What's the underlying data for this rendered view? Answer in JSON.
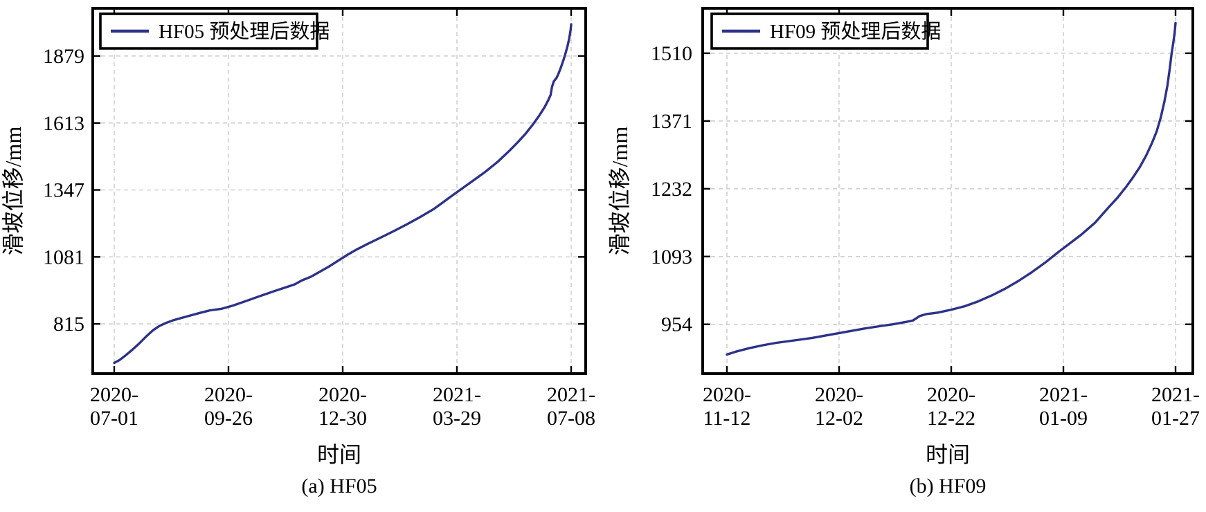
{
  "figure": {
    "background": "#ffffff",
    "line_color": "#2d3289",
    "grid_color": "#c9c9c9",
    "axis_color": "#000000",
    "text_color": "#000000"
  },
  "chart_data": [
    {
      "type": "line",
      "panel": "left",
      "legend": "HF05 预处理后数据",
      "xlabel": "时间",
      "ylabel": "滑坡位移/mm",
      "caption": "(a) HF05",
      "grid": "on",
      "legend_position": "top-left",
      "yticks": [
        815,
        1081,
        1347,
        1613,
        1879
      ],
      "ylim": [
        612,
        2074
      ],
      "xtick_labels": [
        [
          "2020-",
          "07-01"
        ],
        [
          "2020-",
          "09-26"
        ],
        [
          "2020-",
          "12-30"
        ],
        [
          "2021-",
          "03-29"
        ],
        [
          "2021-",
          "07-08"
        ]
      ],
      "series": [
        {
          "name": "HF05 预处理后数据",
          "x_unit": "fraction of x-axis from 2020-07-01 to 2021-07-08",
          "y_unit": "mm",
          "points": [
            [
              0,
              660
            ],
            [
              0.012,
              672
            ],
            [
              0.025,
              690
            ],
            [
              0.04,
              713
            ],
            [
              0.055,
              738
            ],
            [
              0.07,
              765
            ],
            [
              0.085,
              790
            ],
            [
              0.1,
              808
            ],
            [
              0.115,
              820
            ],
            [
              0.13,
              830
            ],
            [
              0.15,
              840
            ],
            [
              0.17,
              850
            ],
            [
              0.19,
              860
            ],
            [
              0.21,
              869
            ],
            [
              0.235,
              875
            ],
            [
              0.26,
              888
            ],
            [
              0.29,
              907
            ],
            [
              0.32,
              926
            ],
            [
              0.35,
              945
            ],
            [
              0.375,
              960
            ],
            [
              0.395,
              972
            ],
            [
              0.41,
              987
            ],
            [
              0.43,
              1002
            ],
            [
              0.45,
              1022
            ],
            [
              0.47,
              1043
            ],
            [
              0.49,
              1066
            ],
            [
              0.51,
              1089
            ],
            [
              0.53,
              1110
            ],
            [
              0.555,
              1133
            ],
            [
              0.58,
              1155
            ],
            [
              0.61,
              1182
            ],
            [
              0.64,
              1210
            ],
            [
              0.67,
              1240
            ],
            [
              0.7,
              1272
            ],
            [
              0.725,
              1305
            ],
            [
              0.75,
              1338
            ],
            [
              0.78,
              1377
            ],
            [
              0.81,
              1416
            ],
            [
              0.84,
              1460
            ],
            [
              0.865,
              1503
            ],
            [
              0.885,
              1540
            ],
            [
              0.9,
              1570
            ],
            [
              0.915,
              1604
            ],
            [
              0.93,
              1642
            ],
            [
              0.942,
              1676
            ],
            [
              0.95,
              1704
            ],
            [
              0.955,
              1724
            ],
            [
              0.958,
              1756
            ],
            [
              0.962,
              1778
            ],
            [
              0.968,
              1792
            ],
            [
              0.973,
              1812
            ],
            [
              0.978,
              1836
            ],
            [
              0.983,
              1862
            ],
            [
              0.988,
              1892
            ],
            [
              0.992,
              1918
            ],
            [
              0.995,
              1942
            ],
            [
              0.997,
              1962
            ],
            [
              0.999,
              1984
            ],
            [
              1,
              2005
            ]
          ]
        }
      ]
    },
    {
      "type": "line",
      "panel": "right",
      "legend": "HF09 预处理后数据",
      "xlabel": "时间",
      "ylabel": "滑坡位移/mm",
      "caption": "(b) HF09",
      "grid": "on",
      "legend_position": "top-left",
      "yticks": [
        954,
        1093,
        1232,
        1371,
        1510
      ],
      "ylim": [
        850,
        1605
      ],
      "xtick_labels": [
        [
          "2020-",
          "11-12"
        ],
        [
          "2020-",
          "12-02"
        ],
        [
          "2020-",
          "12-22"
        ],
        [
          "2021-",
          "01-09"
        ],
        [
          "2021-",
          "01-27"
        ]
      ],
      "series": [
        {
          "name": "HF09 预处理后数据",
          "x_unit": "fraction of x-axis from 2020-11-12 to 2021-01-27",
          "y_unit": "mm",
          "points": [
            [
              0,
              892
            ],
            [
              0.02,
              898
            ],
            [
              0.05,
              905
            ],
            [
              0.08,
              911
            ],
            [
              0.11,
              916
            ],
            [
              0.15,
              921
            ],
            [
              0.19,
              926
            ],
            [
              0.22,
              931
            ],
            [
              0.25,
              936
            ],
            [
              0.28,
              941
            ],
            [
              0.31,
              946
            ],
            [
              0.34,
              950
            ],
            [
              0.37,
              954
            ],
            [
              0.4,
              959
            ],
            [
              0.415,
              962
            ],
            [
              0.43,
              971
            ],
            [
              0.445,
              975
            ],
            [
              0.47,
              978
            ],
            [
              0.5,
              984
            ],
            [
              0.53,
              991
            ],
            [
              0.56,
              1001
            ],
            [
              0.59,
              1013
            ],
            [
              0.62,
              1027
            ],
            [
              0.65,
              1043
            ],
            [
              0.68,
              1061
            ],
            [
              0.71,
              1081
            ],
            [
              0.74,
              1103
            ],
            [
              0.76,
              1117
            ],
            [
              0.79,
              1138
            ],
            [
              0.82,
              1162
            ],
            [
              0.85,
              1193
            ],
            [
              0.87,
              1213
            ],
            [
              0.89,
              1236
            ],
            [
              0.905,
              1255
            ],
            [
              0.92,
              1276
            ],
            [
              0.935,
              1301
            ],
            [
              0.948,
              1327
            ],
            [
              0.958,
              1350
            ],
            [
              0.967,
              1378
            ],
            [
              0.975,
              1410
            ],
            [
              0.982,
              1444
            ],
            [
              0.987,
              1478
            ],
            [
              0.991,
              1508
            ],
            [
              0.995,
              1532
            ],
            [
              0.998,
              1552
            ],
            [
              1,
              1572
            ]
          ]
        }
      ]
    }
  ]
}
